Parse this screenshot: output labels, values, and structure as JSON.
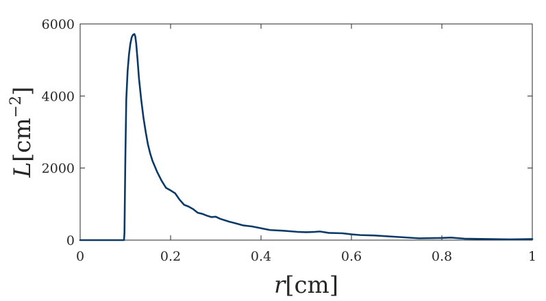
{
  "chart_data": {
    "type": "line",
    "title": "",
    "xlabel_var": "r",
    "xlabel_unit": "[cm]",
    "ylabel_var": "L",
    "ylabel_unit_base": "[cm",
    "ylabel_unit_exp": "−2",
    "ylabel_unit_close": "]",
    "xlim": [
      0,
      1
    ],
    "ylim": [
      0,
      6000
    ],
    "xticks": [
      0,
      0.2,
      0.4,
      0.6,
      0.8,
      1
    ],
    "xtick_labels": [
      "0",
      "0.2",
      "0.4",
      "0.6",
      "0.8",
      "1"
    ],
    "yticks": [
      0,
      2000,
      4000,
      6000
    ],
    "ytick_labels": [
      "0",
      "2000",
      "4000",
      "6000"
    ],
    "grid": false,
    "box": true,
    "line_color": "#0b3a66",
    "series": [
      {
        "x": [
          0,
          0.05,
          0.097,
          0.098,
          0.1,
          0.102,
          0.105,
          0.108,
          0.111,
          0.114,
          0.117,
          0.12,
          0.122,
          0.124,
          0.127,
          0.13,
          0.135,
          0.14,
          0.145,
          0.15,
          0.155,
          0.16,
          0.17,
          0.18,
          0.19,
          0.2,
          0.21,
          0.22,
          0.23,
          0.24,
          0.25,
          0.26,
          0.27,
          0.28,
          0.29,
          0.3,
          0.31,
          0.32,
          0.33,
          0.34,
          0.36,
          0.38,
          0.4,
          0.42,
          0.45,
          0.48,
          0.5,
          0.52,
          0.53,
          0.55,
          0.58,
          0.6,
          0.62,
          0.65,
          0.7,
          0.75,
          0.8,
          0.82,
          0.85,
          0.9,
          0.95,
          1.0
        ],
        "y": [
          0,
          0,
          0,
          200,
          2300,
          3900,
          4700,
          5150,
          5450,
          5630,
          5700,
          5720,
          5650,
          5450,
          5000,
          4500,
          3900,
          3400,
          3000,
          2650,
          2400,
          2200,
          1900,
          1650,
          1450,
          1380,
          1300,
          1120,
          980,
          930,
          860,
          760,
          730,
          680,
          640,
          650,
          590,
          550,
          510,
          480,
          410,
          380,
          330,
          280,
          260,
          230,
          220,
          230,
          240,
          200,
          190,
          160,
          140,
          130,
          90,
          50,
          60,
          70,
          40,
          30,
          20,
          30
        ]
      }
    ]
  }
}
